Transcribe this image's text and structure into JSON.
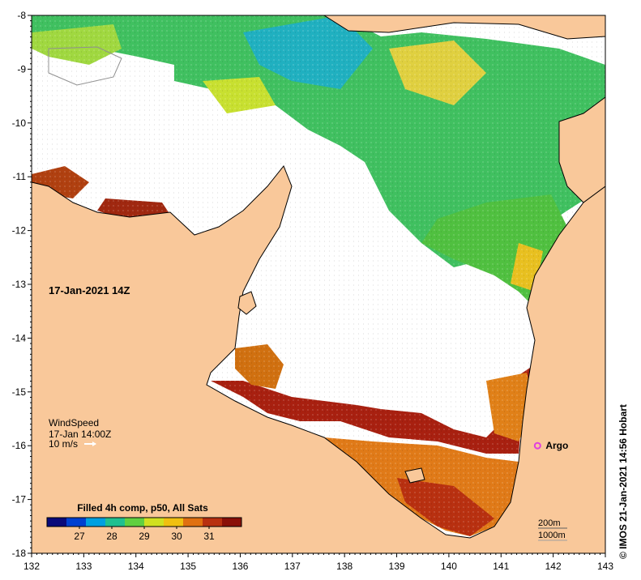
{
  "map": {
    "x_axis": {
      "min": 132,
      "max": 143,
      "ticks": [
        "132",
        "133",
        "134",
        "135",
        "136",
        "137",
        "138",
        "139",
        "140",
        "141",
        "142",
        "143"
      ]
    },
    "y_axis": {
      "min": -18,
      "max": -8,
      "ticks": [
        "-8",
        "-9",
        "-10",
        "-11",
        "-12",
        "-13",
        "-14",
        "-15",
        "-16",
        "-17",
        "-18"
      ]
    },
    "colors": {
      "land": "#f9c89a",
      "nodata": "#ffffff",
      "coast": "#000000",
      "argo": "#e040e0"
    }
  },
  "timestamp": "17-Jan-2021 14Z",
  "wind": {
    "title": "WindSpeed",
    "time": "17-Jan 14:00Z",
    "scale": "10 m/s"
  },
  "argo": {
    "label": "Argo",
    "lon": 141.7,
    "lat": -16.0
  },
  "colorbar": {
    "title": "Filled 4h comp, p50, All Sats",
    "min": 26.0,
    "max": 32.0,
    "ticks": [
      "27",
      "28",
      "29",
      "30",
      "31"
    ],
    "stops": [
      "#0a0a7a",
      "#0040d0",
      "#00a0e0",
      "#20c090",
      "#60d040",
      "#d0e020",
      "#f0c010",
      "#e07010",
      "#b83010",
      "#8a1008"
    ]
  },
  "bathymetry": {
    "line1": "200m",
    "line2": "1000m"
  },
  "credit": "© IMOS 21-Jan-2021 14:56 Hobart"
}
